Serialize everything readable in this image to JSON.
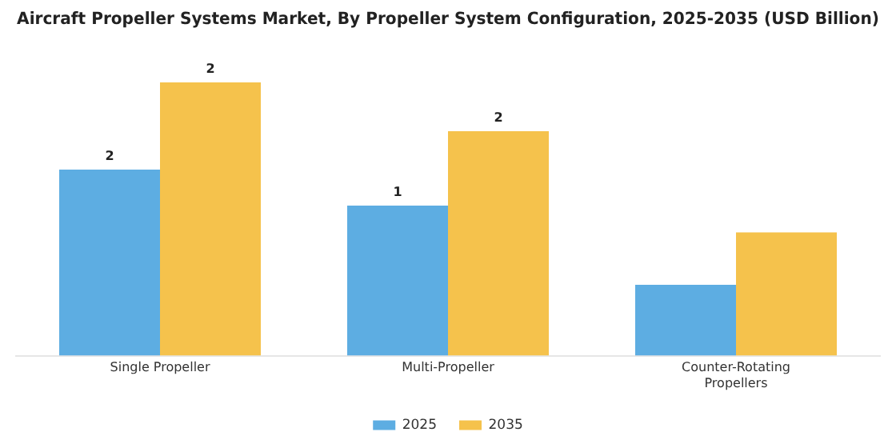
{
  "chart_data": {
    "type": "bar",
    "title": "Aircraft Propeller Systems Market, By Propeller System Configuration, 2025-2035 (USD Billion)",
    "categories": [
      "Single Propeller",
      "Multi-Propeller",
      "Counter-Rotating Propellers"
    ],
    "series": [
      {
        "name": "2025",
        "color": "#5dade2",
        "values": [
          1.6,
          1.29,
          0.61
        ],
        "value_labels": [
          "2",
          "1",
          null
        ]
      },
      {
        "name": "2035",
        "color": "#f5c24c",
        "values": [
          2.35,
          1.93,
          1.06
        ],
        "value_labels": [
          "2",
          "2",
          null
        ]
      }
    ],
    "legend": "bottom",
    "grid": false
  }
}
